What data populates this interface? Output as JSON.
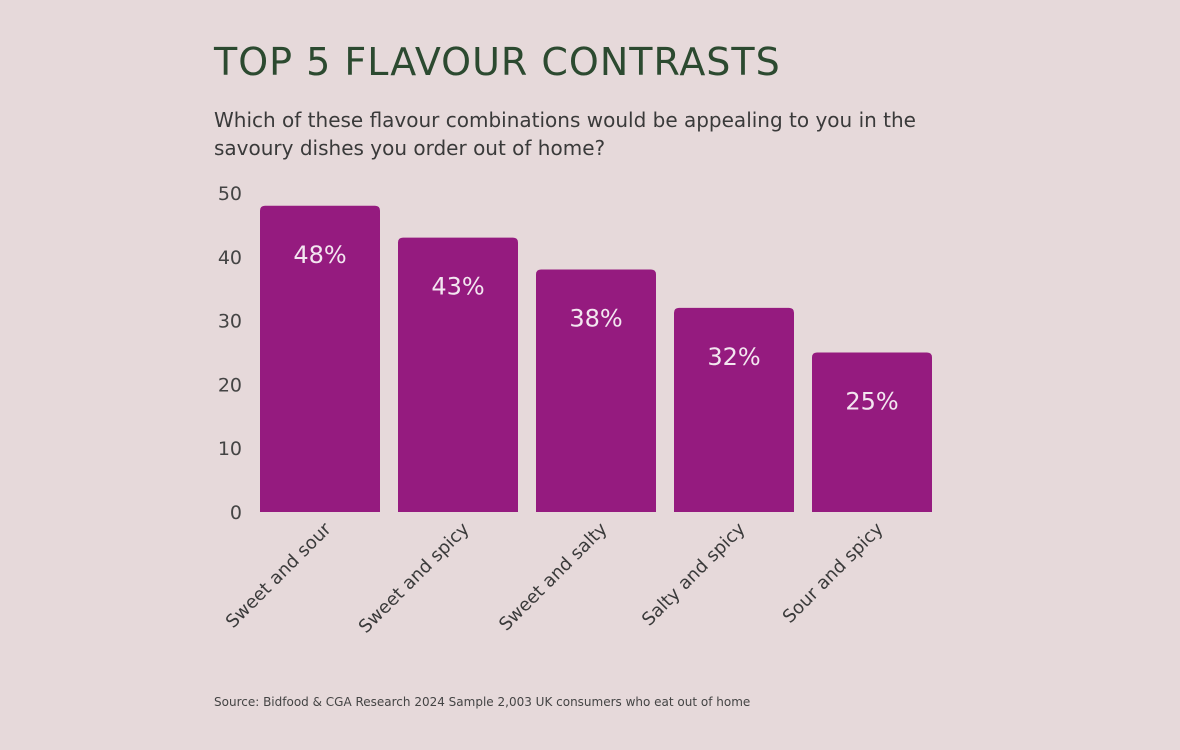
{
  "chart_data": {
    "type": "bar",
    "title": "TOP 5 FLAVOUR CONTRASTS",
    "subtitle": "Which of these flavour combinations would be appealing to you in the savoury dishes you order out of home?",
    "categories": [
      "Sweet and sour",
      "Sweet and spicy",
      "Sweet and salty",
      "Salty and spicy",
      "Sour and spicy"
    ],
    "values": [
      48,
      43,
      38,
      32,
      25
    ],
    "data_labels": [
      "48%",
      "43%",
      "38%",
      "32%",
      "25%"
    ],
    "xlabel": "",
    "ylabel": "",
    "ylim": [
      0,
      50
    ],
    "yticks": [
      0,
      10,
      20,
      30,
      40,
      50
    ],
    "grid": false,
    "bar_color": "#951b7f",
    "source": "Source: Bidfood & CGA Research 2024 Sample 2,003 UK consumers who eat out of home"
  }
}
